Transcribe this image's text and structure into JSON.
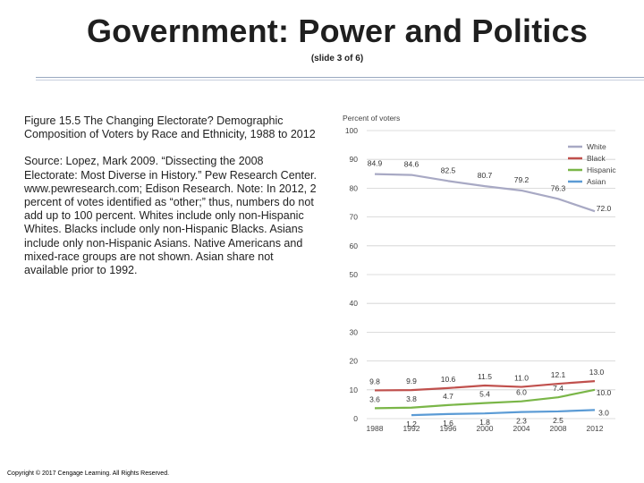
{
  "slide": {
    "title": "Government: Power and Politics",
    "subtitle": "(slide 3 of 6)",
    "caption_title": "Figure 15.5 The Changing Electorate? Demographic Composition of Voters by Race and Ethnicity, 1988 to 2012",
    "caption_source": "Source: Lopez, Mark 2009. “Dissecting the 2008 Electorate: Most Diverse in History.” Pew Research Center. www.pewresearch.com; Edison Research. Note: In 2012, 2 percent of votes identified as “other;” thus, numbers do not add up to 100 percent. Whites include only non-Hispanic Whites. Blacks include only non-Hispanic Blacks. Asians include only non-Hispanic Asians. Native Americans and mixed-race groups are not shown. Asian share not available prior to 1992.",
    "copyright": "Copyright © 2017 Cengage Learning. All Rights Reserved."
  },
  "chart_data": {
    "type": "line",
    "ylabel": "Percent of voters",
    "ylim": [
      0,
      100
    ],
    "yticks": [
      0,
      10,
      20,
      30,
      40,
      50,
      60,
      70,
      80,
      90,
      100
    ],
    "x": [
      1988,
      1992,
      1996,
      2000,
      2004,
      2008,
      2012
    ],
    "grid": true,
    "legend_position": "top-right",
    "series": [
      {
        "name": "White",
        "color": "#a8a9c4",
        "values": [
          84.9,
          84.6,
          82.5,
          80.7,
          79.2,
          76.3,
          72.0
        ],
        "labels": [
          "84.9",
          "84.6",
          "82.5",
          "80.7",
          "79.2",
          "76.3",
          "72.0"
        ]
      },
      {
        "name": "Black",
        "color": "#c0504d",
        "values": [
          9.8,
          9.9,
          10.6,
          11.5,
          11.0,
          12.1,
          13.0
        ],
        "labels": [
          "9.8",
          "9.9",
          "10.6",
          "11.5",
          "11.0",
          "12.1",
          "13.0"
        ]
      },
      {
        "name": "Hispanic",
        "color": "#7ab648",
        "values": [
          3.6,
          3.8,
          4.7,
          5.4,
          6.0,
          7.4,
          10.0
        ],
        "labels": [
          "3.6",
          "3.8",
          "4.7",
          "5.4",
          "6.0",
          "7.4",
          "10.0"
        ]
      },
      {
        "name": "Asian",
        "color": "#5b9bd5",
        "values": [
          null,
          1.2,
          1.6,
          1.8,
          2.3,
          2.5,
          3.0
        ],
        "labels": [
          "",
          "1.2",
          "1.6",
          "1.8",
          "2.3",
          "2.5",
          "3.0"
        ]
      }
    ]
  }
}
